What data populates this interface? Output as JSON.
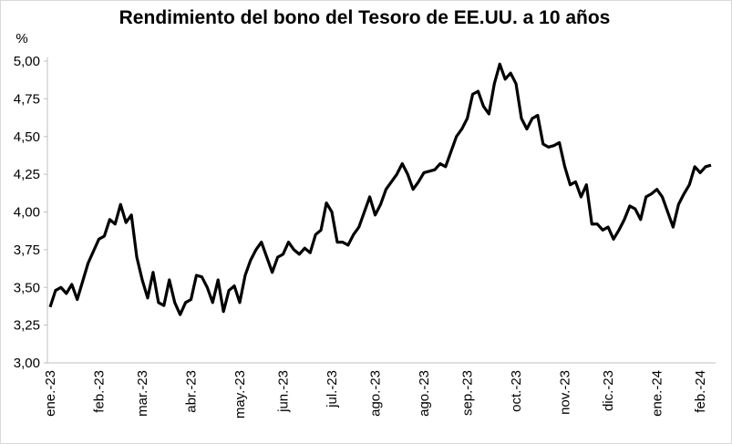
{
  "chart_data": {
    "type": "line",
    "title": "Rendimiento del bono del Tesoro de EE.UU. a 10 años",
    "y_unit": "%",
    "color": "#000000",
    "categories": [
      "ene.-23",
      null,
      null,
      null,
      null,
      null,
      null,
      null,
      null,
      "feb.-23",
      null,
      null,
      null,
      null,
      null,
      null,
      null,
      "mar.-23",
      null,
      null,
      null,
      null,
      null,
      null,
      null,
      null,
      "abr.-23",
      null,
      null,
      null,
      null,
      null,
      null,
      null,
      null,
      "may.-23",
      null,
      null,
      null,
      null,
      null,
      null,
      null,
      "jun.-23",
      null,
      null,
      null,
      null,
      null,
      null,
      null,
      null,
      "jul.-23",
      null,
      null,
      null,
      null,
      null,
      null,
      null,
      "ago.-23",
      null,
      null,
      null,
      null,
      null,
      null,
      null,
      null,
      "ago.-23",
      null,
      null,
      null,
      null,
      null,
      null,
      null,
      "sep.-23",
      null,
      null,
      null,
      null,
      null,
      null,
      null,
      null,
      "oct.-23",
      null,
      null,
      null,
      null,
      null,
      null,
      null,
      null,
      "nov.-23",
      null,
      null,
      null,
      null,
      null,
      null,
      null,
      "dic.-23",
      null,
      null,
      null,
      null,
      null,
      null,
      null,
      null,
      "ene.-24",
      null,
      null,
      null,
      null,
      null,
      null,
      null,
      "feb.-24",
      null,
      null
    ],
    "values": [
      3.37,
      3.48,
      3.5,
      3.46,
      3.52,
      3.42,
      3.54,
      3.66,
      3.74,
      3.82,
      3.84,
      3.95,
      3.92,
      4.05,
      3.93,
      3.98,
      3.7,
      3.55,
      3.43,
      3.6,
      3.4,
      3.38,
      3.55,
      3.4,
      3.32,
      3.4,
      3.42,
      3.58,
      3.57,
      3.5,
      3.4,
      3.55,
      3.34,
      3.48,
      3.51,
      3.4,
      3.58,
      3.68,
      3.75,
      3.8,
      3.7,
      3.6,
      3.7,
      3.72,
      3.8,
      3.75,
      3.72,
      3.76,
      3.73,
      3.85,
      3.88,
      4.06,
      4.0,
      3.8,
      3.8,
      3.78,
      3.85,
      3.9,
      4.0,
      4.1,
      3.98,
      4.05,
      4.15,
      4.2,
      4.25,
      4.32,
      4.25,
      4.15,
      4.2,
      4.26,
      4.27,
      4.28,
      4.32,
      4.3,
      4.4,
      4.5,
      4.55,
      4.62,
      4.78,
      4.8,
      4.7,
      4.65,
      4.85,
      4.98,
      4.88,
      4.92,
      4.85,
      4.62,
      4.55,
      4.62,
      4.64,
      4.45,
      4.43,
      4.44,
      4.46,
      4.3,
      4.18,
      4.2,
      4.1,
      4.18,
      3.92,
      3.92,
      3.88,
      3.9,
      3.82,
      3.88,
      3.95,
      4.04,
      4.02,
      3.95,
      4.1,
      4.12,
      4.15,
      4.1,
      4.0,
      3.9,
      4.05,
      4.12,
      4.18,
      4.3,
      4.26,
      4.3,
      4.31
    ],
    "ylim": [
      3,
      5
    ],
    "yticks": [
      {
        "value": 3,
        "label": "3,00"
      },
      {
        "value": 3.25,
        "label": "3,25"
      },
      {
        "value": 3.5,
        "label": "3,50"
      },
      {
        "value": 3.75,
        "label": "3,75"
      },
      {
        "value": 4,
        "label": "4,00"
      },
      {
        "value": 4.25,
        "label": "4,25"
      },
      {
        "value": 4.5,
        "label": "4,50"
      },
      {
        "value": 4.75,
        "label": "4,75"
      },
      {
        "value": 5,
        "label": "5,00"
      }
    ],
    "grid": false
  }
}
